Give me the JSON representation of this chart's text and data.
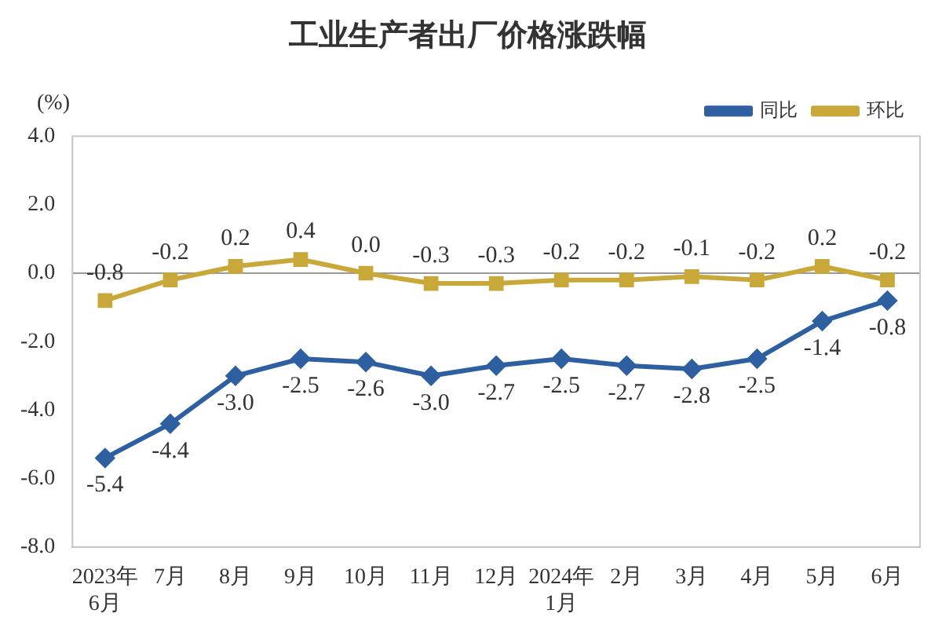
{
  "chart_data": {
    "type": "line",
    "title": "工业生产者出厂价格涨跌幅",
    "ylabel": "(%)",
    "categories": [
      "2023年\n6月",
      "7月",
      "8月",
      "9月",
      "10月",
      "11月",
      "12月",
      "2024年\n1月",
      "2月",
      "3月",
      "4月",
      "5月",
      "6月"
    ],
    "series": [
      {
        "name": "同比",
        "color": "#2e5fa0",
        "marker": "diamond",
        "values": [
          -5.4,
          -4.4,
          -3.0,
          -2.5,
          -2.6,
          -3.0,
          -2.7,
          -2.5,
          -2.7,
          -2.8,
          -2.5,
          -1.4,
          -0.8
        ],
        "value_labels": [
          "-5.4",
          "-4.4",
          "-3.0",
          "-2.5",
          "-2.6",
          "-3.0",
          "-2.7",
          "-2.5",
          "-2.7",
          "-2.8",
          "-2.5",
          "-1.4",
          "-0.8"
        ]
      },
      {
        "name": "环比",
        "color": "#c9a83a",
        "marker": "square",
        "values": [
          -0.8,
          -0.2,
          0.2,
          0.4,
          0.0,
          -0.3,
          -0.3,
          -0.2,
          -0.2,
          -0.1,
          -0.2,
          0.2,
          -0.2
        ],
        "value_labels": [
          "-0.8",
          "-0.2",
          "0.2",
          "0.4",
          "0.0",
          "-0.3",
          "-0.3",
          "-0.2",
          "-0.2",
          "-0.1",
          "-0.2",
          "0.2",
          "-0.2"
        ]
      }
    ],
    "ylim": [
      -8,
      4
    ],
    "yticks": [
      {
        "value": 4,
        "label": "4.0"
      },
      {
        "value": 2,
        "label": "2.0"
      },
      {
        "value": 0,
        "label": "0.0"
      },
      {
        "value": -2,
        "label": "-2.0"
      },
      {
        "value": -4,
        "label": "-4.0"
      },
      {
        "value": -6,
        "label": "-6.0"
      },
      {
        "value": -8,
        "label": "-8.0"
      }
    ],
    "ref_lines": [
      {
        "axis": "y",
        "value": 0,
        "color": "#999999"
      }
    ],
    "legend": "top right",
    "grid": false
  }
}
